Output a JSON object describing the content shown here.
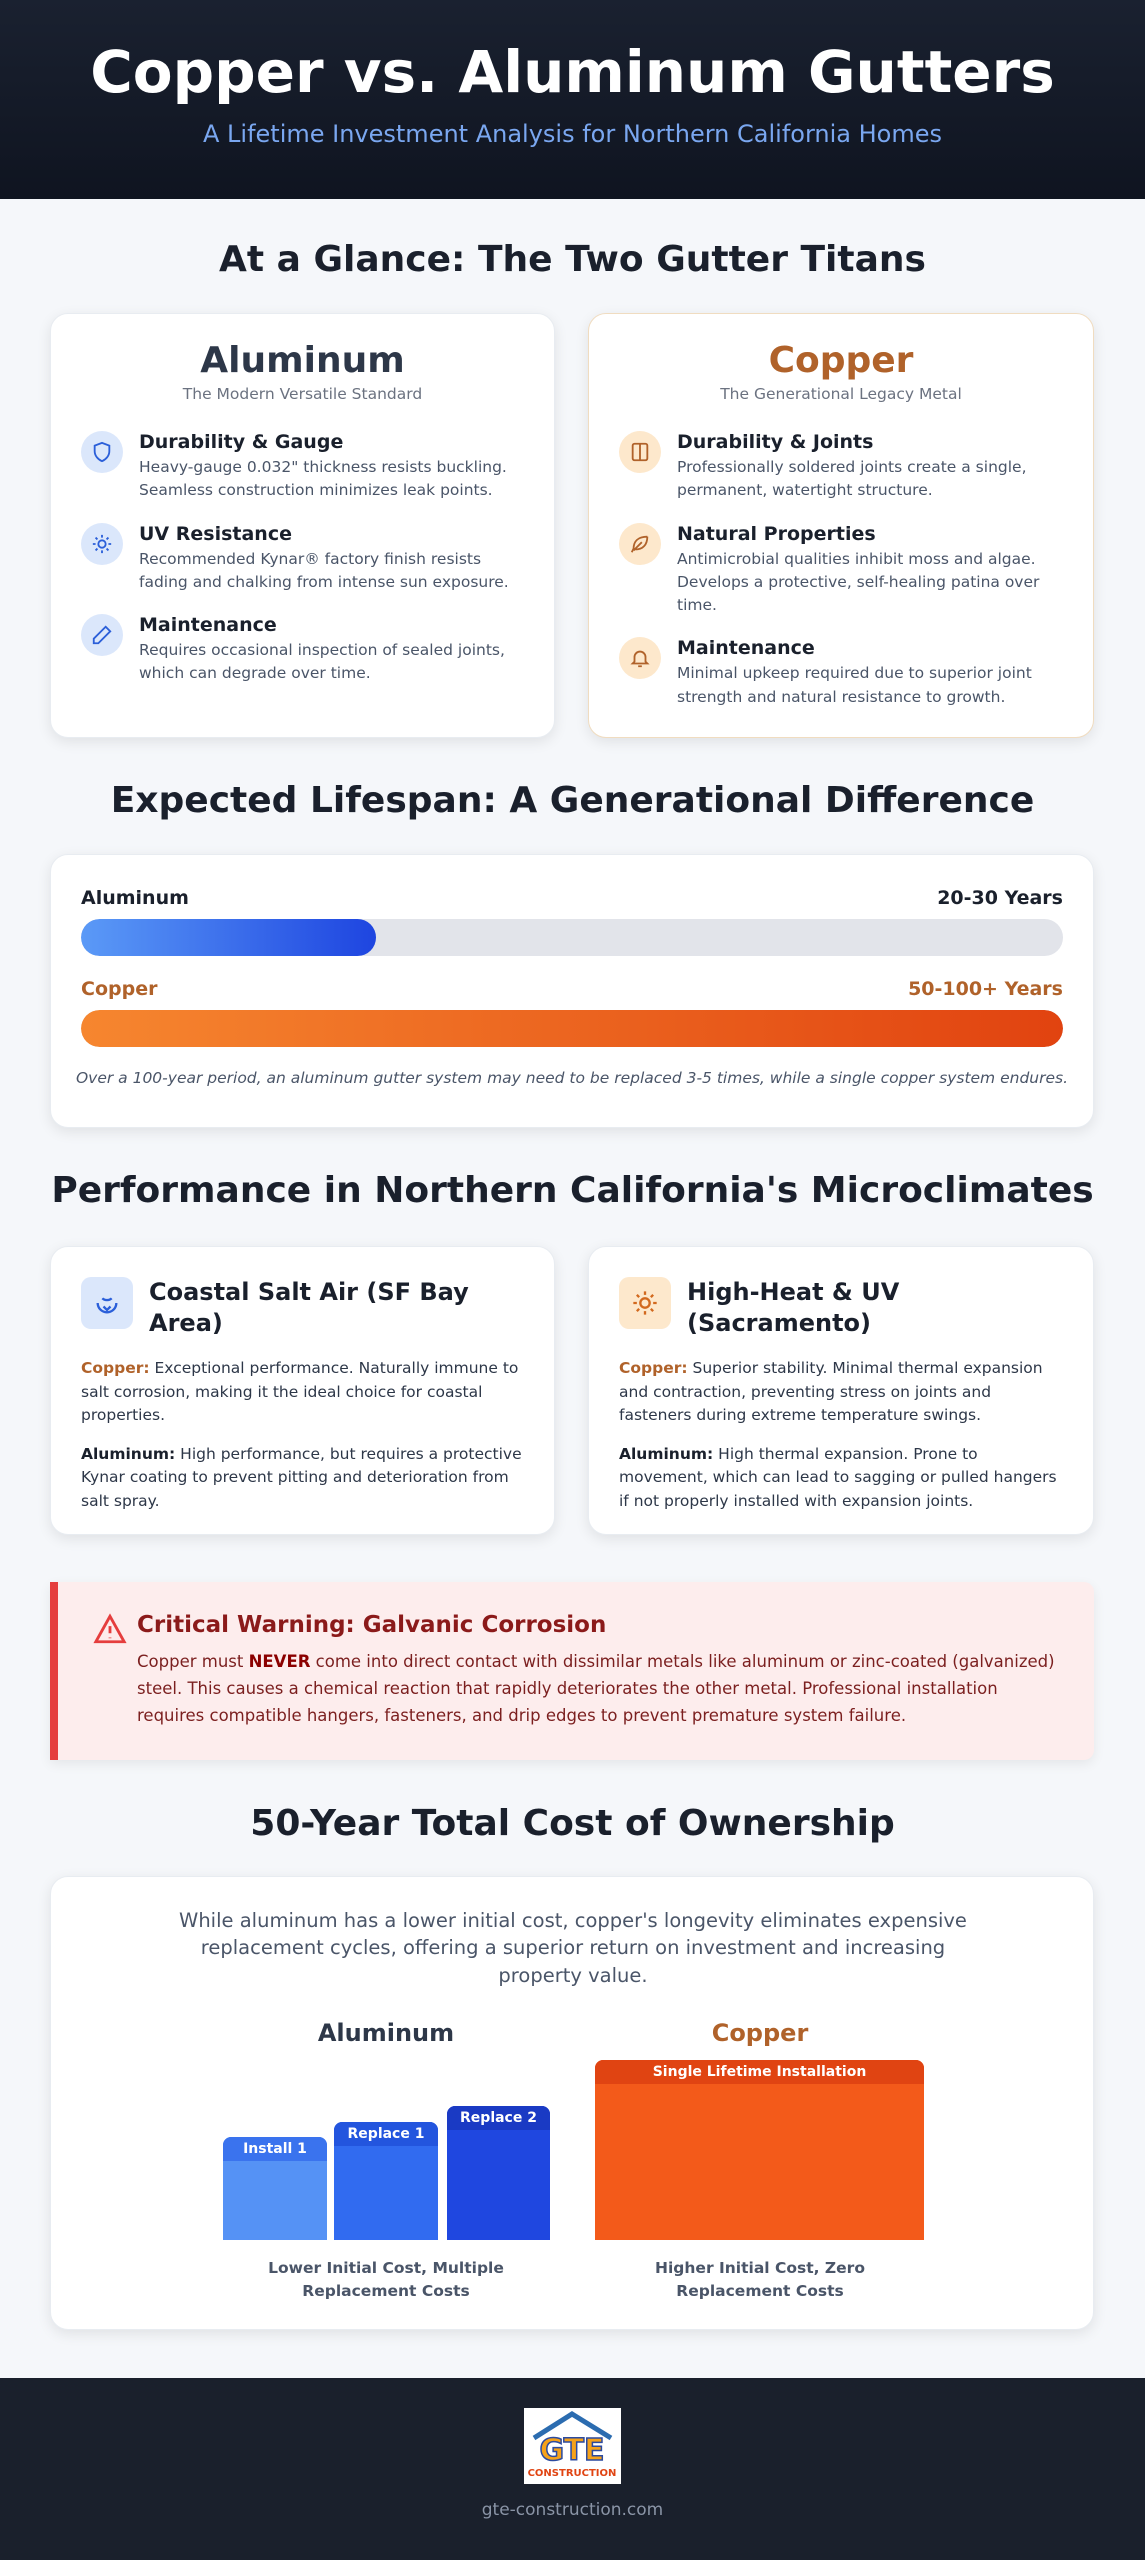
{
  "header": {
    "title": "Copper vs. Aluminum Gutters",
    "subtitle": "A Lifetime Investment Analysis for Northern California Homes"
  },
  "glance": {
    "heading": "At a Glance: The Two Gutter Titans",
    "cards": [
      {
        "title": "Aluminum",
        "subtitle": "The Modern Versatile Standard",
        "items": [
          {
            "title": "Durability & Gauge",
            "text": "Heavy-gauge 0.032\" thickness resists buckling. Seamless construction minimizes leak points."
          },
          {
            "title": "UV Resistance",
            "text": "Recommended Kynar® factory finish resists fading and chalking from intense sun exposure."
          },
          {
            "title": "Maintenance",
            "text": "Requires occasional inspection of sealed joints, which can degrade over time."
          }
        ]
      },
      {
        "title": "Copper",
        "subtitle": "The Generational Legacy Metal",
        "items": [
          {
            "title": "Durability & Joints",
            "text": "Professionally soldered joints create a single, permanent, watertight structure."
          },
          {
            "title": "Natural Properties",
            "text": "Antimicrobial qualities inhibit moss and algae. Develops a protective, self-healing patina over time."
          },
          {
            "title": "Maintenance",
            "text": "Minimal upkeep required due to superior joint strength and natural resistance to growth."
          }
        ]
      }
    ]
  },
  "lifespan": {
    "heading": "Expected Lifespan: A Generational Difference",
    "rows": [
      {
        "name": "Aluminum",
        "value": "20-30 Years"
      },
      {
        "name": "Copper",
        "value": "50-100+ Years"
      }
    ],
    "note": "Over a 100-year period, an aluminum gutter system may need to be replaced 3-5 times, while a single copper system endures."
  },
  "performance": {
    "heading": "Performance in Northern California's Microclimates",
    "cards": [
      {
        "title": "Coastal Salt Air (SF Bay Area)",
        "entries": [
          {
            "label": "Copper:",
            "text": "Exceptional performance. Naturally immune to salt corrosion, making it the ideal choice for coastal properties."
          },
          {
            "label": "Aluminum:",
            "text": "High performance, but requires a protective Kynar coating to prevent pitting and deterioration from salt spray."
          }
        ]
      },
      {
        "title": "High-Heat & UV (Sacramento)",
        "entries": [
          {
            "label": "Copper:",
            "text": "Superior stability. Minimal thermal expansion and contraction, preventing stress on joints and fasteners during extreme temperature swings."
          },
          {
            "label": "Aluminum:",
            "text": "High thermal expansion. Prone to movement, which can lead to sagging or pulled hangers if not properly installed with expansion joints."
          }
        ]
      }
    ]
  },
  "warning": {
    "title": "Critical Warning: Galvanic Corrosion",
    "text_before": "Copper must",
    "emphasis": "NEVER",
    "text_after": "come into direct contact with dissimilar metals like aluminum or zinc-coated (galvanized) steel. This causes a chemical reaction that rapidly deteriorates the other metal. Professional installation requires compatible hangers, fasteners, and drip edges to prevent premature system failure."
  },
  "cost": {
    "heading": "50-Year Total Cost of Ownership",
    "intro": "While aluminum has a lower initial cost, copper's longevity eliminates expensive replacement cycles, offering a superior return on investment and increasing property value.",
    "columns": [
      {
        "title": "Aluminum",
        "bars": [
          "Install 1",
          "Replace 1",
          "Replace 2"
        ],
        "caption": "Lower Initial Cost, Multiple Replacement Costs"
      },
      {
        "title": "Copper",
        "bars": [
          "Single Lifetime Installation"
        ],
        "caption": "Higher Initial Cost, Zero Replacement Costs"
      }
    ]
  },
  "footer": {
    "logo_text": "GTE",
    "logo_subtext": "CONSTRUCTION",
    "site": "gte-construction.com"
  }
}
